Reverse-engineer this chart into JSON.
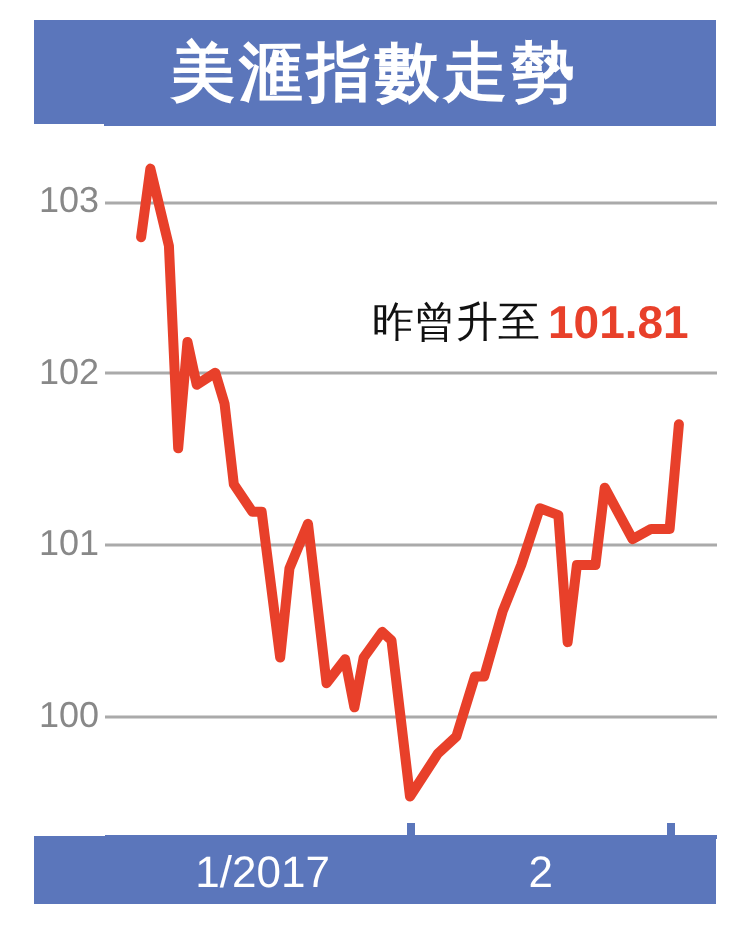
{
  "chart_data": {
    "type": "line",
    "title": "美滙指數走勢",
    "x": [
      "2017-01-03",
      "2017-01-04",
      "2017-01-06",
      "2017-01-07",
      "2017-01-08",
      "2017-01-09",
      "2017-01-11",
      "2017-01-12",
      "2017-01-13",
      "2017-01-15",
      "2017-01-16",
      "2017-01-18",
      "2017-01-19",
      "2017-01-21",
      "2017-01-23",
      "2017-01-25",
      "2017-01-26",
      "2017-01-27",
      "2017-01-29",
      "2017-01-30",
      "2017-02-01",
      "2017-02-04",
      "2017-02-06",
      "2017-02-08",
      "2017-02-09",
      "2017-02-11",
      "2017-02-13",
      "2017-02-15",
      "2017-02-17",
      "2017-02-18",
      "2017-02-19",
      "2017-02-21",
      "2017-02-22",
      "2017-02-25",
      "2017-02-27",
      "2017-03-01",
      "2017-03-02"
    ],
    "series": [
      {
        "color": "#e8402a",
        "values": [
          102.79,
          103.19,
          102.74,
          101.56,
          102.18,
          101.93,
          102.0,
          101.82,
          101.35,
          101.19,
          101.19,
          100.34,
          100.86,
          101.12,
          100.19,
          100.33,
          100.05,
          100.34,
          100.49,
          100.44,
          99.53,
          99.78,
          99.88,
          100.23,
          100.23,
          100.61,
          100.88,
          101.21,
          101.17,
          100.43,
          100.88,
          100.88,
          101.33,
          101.03,
          101.09,
          101.09,
          101.7
        ]
      }
    ],
    "xlim": [
      "2016-12-30",
      "2017-03-06"
    ],
    "xticks": [
      {
        "value": "2017-01-16",
        "label": "1/2017"
      },
      {
        "value": "2017-02-01",
        "label": null
      },
      {
        "value": "2017-02-15",
        "label": "2"
      },
      {
        "value": "2017-03-01",
        "label": null
      }
    ],
    "ylim": [
      99.3,
      103.45
    ],
    "yticks": [
      100,
      101,
      102,
      103
    ],
    "grid": "y",
    "marker": "none",
    "line_style": "solid",
    "annotations": [
      "昨曾升至 101.81"
    ]
  }
}
